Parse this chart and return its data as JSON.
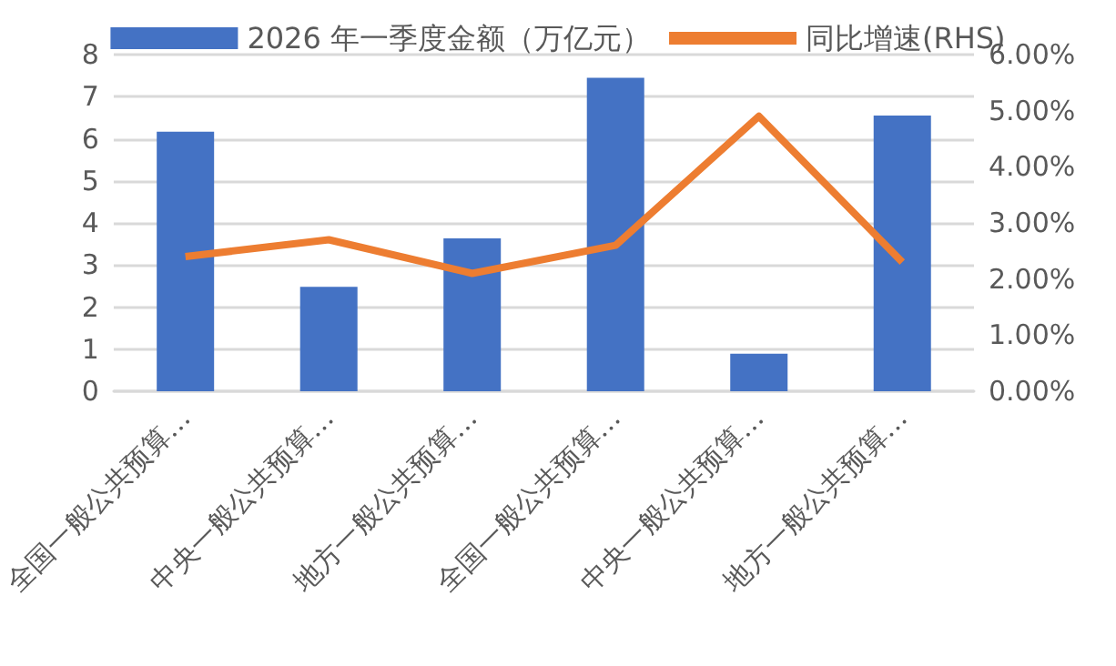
{
  "chart_data": {
    "type": "bar",
    "categories": [
      "全国一般公共预算…",
      "中央一般公共预算…",
      "地方一般公共预算…",
      "全国一般公共预算…",
      "中央一般公共预算…",
      "地方一般公共预算…"
    ],
    "series": [
      {
        "name": "2026 年一季度金额（万亿元）",
        "color": "#4472c4",
        "values": [
          6.17,
          2.48,
          3.63,
          7.45,
          0.89,
          6.55
        ]
      },
      {
        "name": "同比增速(RHS)",
        "type": "line",
        "axis": "y2",
        "color": "#ed7d31",
        "values": [
          2.4,
          2.7,
          2.1,
          2.6,
          4.9,
          2.3
        ]
      }
    ],
    "ylim": [
      0,
      8
    ],
    "yticks": [
      0,
      1,
      2,
      3,
      4,
      5,
      6,
      7,
      8
    ],
    "y2lim": [
      0,
      6
    ],
    "y2ticks": [
      {
        "value": 0,
        "label": "0.00%"
      },
      {
        "value": 1,
        "label": "1.00%"
      },
      {
        "value": 2,
        "label": "2.00%"
      },
      {
        "value": 3,
        "label": "3.00%"
      },
      {
        "value": 4,
        "label": "4.00%"
      },
      {
        "value": 5,
        "label": "5.00%"
      },
      {
        "value": 6,
        "label": "6.00%"
      }
    ],
    "grid": "y",
    "legend": "top",
    "marker": "none"
  }
}
